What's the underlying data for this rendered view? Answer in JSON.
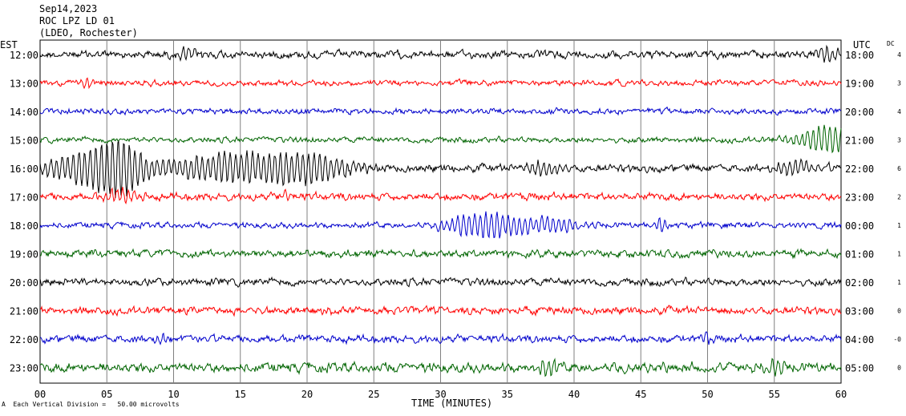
{
  "header": {
    "date": "Sep14,2023",
    "station": "ROC LPZ LD 01",
    "network": "(LDEO, Rochester)"
  },
  "axis": {
    "left_title": "EST",
    "right_title": "UTC",
    "dc_title": "DC",
    "x_label": "TIME (MINUTES)"
  },
  "footer": {
    "division_note": "Each Vertical Division =   50.00 microvolts",
    "corner_mark": "A"
  },
  "chart_data": {
    "type": "line",
    "title": "",
    "xlabel": "TIME (MINUTES)",
    "xlim": [
      0,
      60
    ],
    "x_ticks": [
      "00",
      "05",
      "10",
      "15",
      "20",
      "25",
      "30",
      "35",
      "40",
      "45",
      "50",
      "55",
      "60"
    ],
    "grid": true,
    "trace_colors": [
      "#000000",
      "#ff0000",
      "#0000cc",
      "#006400"
    ],
    "series": [
      {
        "est": "12:00",
        "utc": "18:00",
        "dc": "4",
        "color": "#000000",
        "amp": 4,
        "events": [
          [
            11,
            1,
            8
          ],
          [
            59,
            1,
            8
          ]
        ]
      },
      {
        "est": "13:00",
        "utc": "19:00",
        "dc": "3",
        "color": "#ff0000",
        "amp": 3,
        "events": [
          [
            3.5,
            0.4,
            8
          ]
        ]
      },
      {
        "est": "14:00",
        "utc": "20:00",
        "dc": "4",
        "color": "#0000cc",
        "amp": 3,
        "events": []
      },
      {
        "est": "15:00",
        "utc": "21:00",
        "dc": "3",
        "color": "#006400",
        "amp": 3,
        "events": [
          [
            59,
            2.5,
            16
          ]
        ]
      },
      {
        "est": "16:00",
        "utc": "22:00",
        "dc": "6",
        "color": "#000000",
        "amp": 4,
        "events": [
          [
            3,
            3,
            16
          ],
          [
            6,
            2,
            30
          ],
          [
            12,
            3,
            12
          ],
          [
            16,
            3,
            14
          ],
          [
            20.5,
            3,
            16
          ],
          [
            37.5,
            1.5,
            8
          ],
          [
            56.5,
            2,
            8
          ]
        ]
      },
      {
        "est": "17:00",
        "utc": "23:00",
        "dc": "2",
        "color": "#ff0000",
        "amp": 4,
        "events": [
          [
            6,
            1.5,
            8
          ],
          [
            18.5,
            0.5,
            6
          ]
        ]
      },
      {
        "est": "18:00",
        "utc": "00:00",
        "dc": "1",
        "color": "#0000cc",
        "amp": 3,
        "events": [
          [
            33.5,
            3,
            16
          ],
          [
            38.5,
            2,
            8
          ],
          [
            46.5,
            0.5,
            8
          ]
        ]
      },
      {
        "est": "19:00",
        "utc": "01:00",
        "dc": "1",
        "color": "#006400",
        "amp": 4,
        "events": []
      },
      {
        "est": "20:00",
        "utc": "02:00",
        "dc": "1",
        "color": "#000000",
        "amp": 4,
        "events": []
      },
      {
        "est": "21:00",
        "utc": "03:00",
        "dc": "0",
        "color": "#ff0000",
        "amp": 4,
        "events": []
      },
      {
        "est": "22:00",
        "utc": "04:00",
        "dc": "-0",
        "color": "#0000cc",
        "amp": 4,
        "events": [
          [
            9,
            0.4,
            8
          ],
          [
            49.8,
            0.4,
            8
          ]
        ]
      },
      {
        "est": "23:00",
        "utc": "05:00",
        "dc": "0",
        "color": "#006400",
        "amp": 5,
        "events": [
          [
            38,
            1,
            8
          ],
          [
            55,
            1,
            7
          ]
        ]
      }
    ]
  }
}
